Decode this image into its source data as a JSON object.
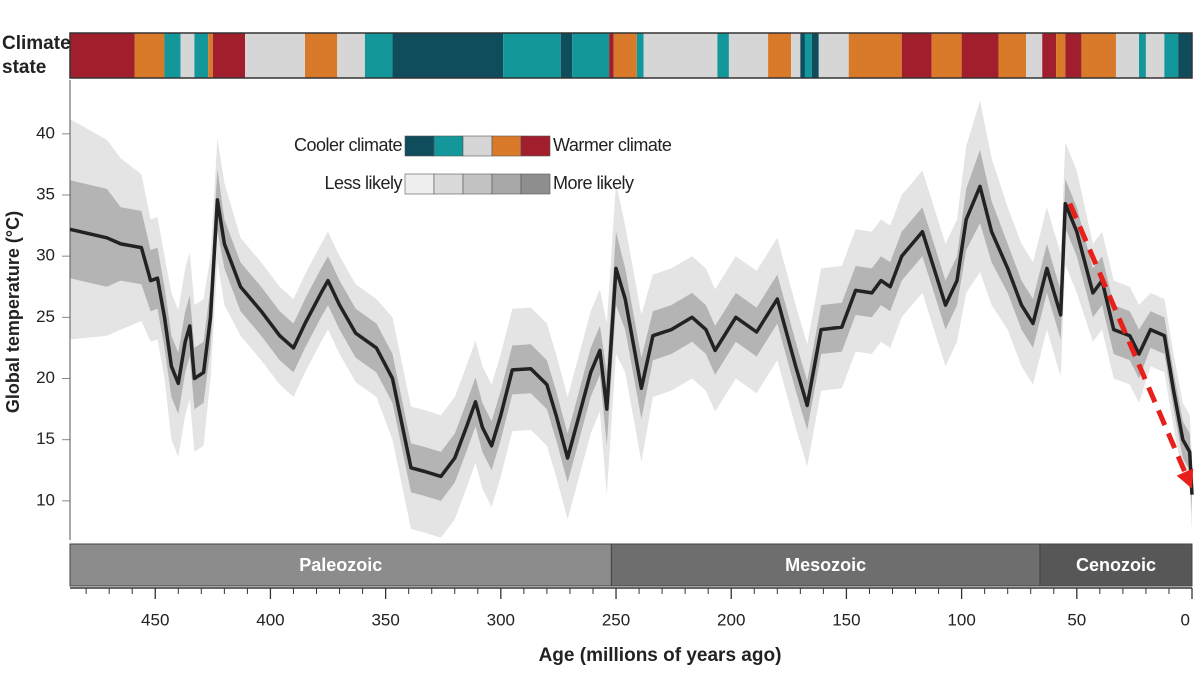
{
  "chart_data": {
    "type": "line",
    "y_label": "Global temperature (°C)",
    "x_label": "Age (millions of years ago)",
    "xlim": [
      487,
      0
    ],
    "ylim": [
      6.8,
      44.4
    ],
    "xticks": [
      450,
      400,
      350,
      300,
      250,
      200,
      150,
      100,
      50,
      0
    ],
    "xminor_ticks": [
      480,
      470,
      460,
      440,
      430,
      420,
      410,
      390,
      380,
      370,
      360,
      340,
      330,
      320,
      310,
      290,
      280,
      270,
      260,
      240,
      230,
      220,
      210,
      190,
      180,
      170,
      160,
      140,
      130,
      120,
      110,
      90,
      80,
      70,
      60,
      40,
      30,
      20,
      10
    ],
    "yticks": [
      10,
      15,
      20,
      25,
      30,
      35,
      40
    ],
    "color": "#222222",
    "x": [
      487,
      471,
      465,
      456,
      452,
      449,
      446,
      443,
      440,
      437,
      435,
      433,
      429,
      426,
      423,
      420,
      413,
      404,
      396,
      390,
      385,
      378,
      375,
      370,
      363,
      354,
      347,
      339,
      333,
      326,
      320,
      315,
      311,
      308,
      304,
      300,
      295,
      287,
      280,
      276,
      271,
      266,
      261,
      257,
      254,
      250,
      246,
      239,
      234,
      226,
      217,
      211,
      207,
      198,
      189,
      180,
      172,
      167,
      161,
      152,
      146,
      139,
      135,
      131,
      126,
      117,
      112,
      107,
      102,
      98,
      92,
      87,
      80,
      74,
      69,
      63,
      57,
      55,
      50,
      43,
      39,
      34,
      27,
      23,
      18,
      12,
      8,
      4,
      1,
      0
    ],
    "values": [
      32.2,
      31.5,
      31,
      30.7,
      28,
      28.2,
      25,
      21,
      19.6,
      23,
      24.3,
      20,
      20.5,
      25,
      34.6,
      31,
      27.5,
      25.5,
      23.5,
      22.5,
      24.5,
      27,
      28,
      26,
      23.7,
      22.5,
      20,
      12.7,
      12.4,
      12,
      13.5,
      16,
      18.1,
      16,
      14.5,
      17,
      20.7,
      20.8,
      19.5,
      17,
      13.5,
      17,
      20.5,
      22.3,
      17.5,
      29,
      26.5,
      19.2,
      23.5,
      24,
      25,
      24,
      22.3,
      25,
      23.8,
      26.5,
      21,
      17.8,
      24,
      24.2,
      27.2,
      27,
      28,
      27.5,
      30,
      32,
      29,
      26,
      28,
      33,
      35.7,
      32,
      29,
      26,
      24.5,
      29,
      25.2,
      34.3,
      32,
      27,
      28,
      24,
      23.5,
      22,
      24,
      23.5,
      19,
      15,
      14,
      10.5
    ],
    "error_bands": [
      {
        "color": "#e4e4e4",
        "errors": [
          9,
          8,
          7,
          6,
          5,
          5,
          5,
          6,
          6,
          6,
          6,
          6,
          6,
          5,
          5,
          5,
          4,
          4,
          4,
          4,
          4,
          4,
          4,
          4,
          4,
          4,
          5,
          5,
          5,
          5,
          5,
          5,
          5,
          5,
          5,
          5,
          5,
          5,
          5,
          5,
          5,
          5,
          5,
          5,
          7,
          7,
          6,
          6,
          5,
          5,
          5,
          5,
          5,
          5,
          5,
          5,
          5,
          5,
          5,
          5,
          5,
          5,
          5,
          5,
          5,
          5,
          5,
          5,
          5,
          6,
          7,
          6,
          5,
          5,
          5,
          5,
          5,
          5,
          5,
          4,
          4,
          4,
          4,
          4,
          3,
          3,
          3,
          3,
          3,
          3
        ]
      },
      {
        "color": "#b4b4b4",
        "errors": [
          4,
          4,
          3,
          3,
          2.5,
          2.5,
          2.5,
          2.5,
          2.5,
          2.5,
          2.5,
          2.5,
          2.5,
          2.5,
          2.5,
          2,
          2,
          2,
          2,
          2,
          2,
          2,
          2,
          2,
          2,
          2,
          2,
          2,
          2,
          2,
          2,
          2,
          2,
          2,
          2,
          2,
          2,
          2,
          2,
          2,
          2,
          2,
          2,
          2,
          3,
          3,
          2.5,
          2.5,
          2,
          2,
          2,
          2,
          2,
          2,
          2,
          2,
          2,
          2,
          2,
          2,
          2,
          2,
          2,
          2,
          2,
          2,
          2,
          2,
          2,
          2.5,
          3,
          2.5,
          2,
          2,
          2,
          2,
          2,
          2,
          2,
          2,
          2,
          2,
          2,
          2,
          1.5,
          1.5,
          1.5,
          1.5,
          1.5,
          1.5
        ]
      }
    ],
    "climate_state": {
      "label": [
        "Climate",
        "state"
      ],
      "boundaries": [
        487,
        459,
        446,
        439,
        433,
        427,
        425,
        411,
        385,
        371,
        359,
        347,
        299,
        274,
        269,
        253,
        251,
        241,
        238,
        206,
        201,
        184,
        174,
        170,
        168,
        165,
        162,
        149,
        126,
        113,
        100,
        84,
        72,
        65,
        59,
        55,
        48,
        33,
        23,
        20,
        12,
        6,
        0
      ],
      "states": [
        4,
        3,
        1,
        2,
        1,
        3,
        4,
        2,
        3,
        2,
        1,
        0,
        1,
        0,
        1,
        4,
        3,
        1,
        2,
        1,
        2,
        3,
        2,
        0,
        1,
        0,
        2,
        3,
        4,
        3,
        4,
        3,
        2,
        4,
        3,
        4,
        3,
        2,
        1,
        2,
        1,
        0
      ]
    },
    "legend": {
      "climate": {
        "left": "Cooler climate",
        "right": "Warmer climate",
        "colors": [
          "#0f4d5c",
          "#13979b",
          "#d6d6d6",
          "#d97a2b",
          "#a11f2d"
        ]
      },
      "likelihood": {
        "left": "Less likely",
        "right": "More likely",
        "colors": [
          "#eeeeee",
          "#dadada",
          "#c2c2c2",
          "#a8a8a8",
          "#8e8e8e"
        ]
      }
    },
    "eras": {
      "names": [
        "Paleozoic",
        "Mesozoic",
        "Cenozoic"
      ],
      "boundaries": [
        487,
        252,
        66,
        0
      ],
      "colors": [
        "#8c8c8c",
        "#6e6e6e",
        "#575757"
      ]
    },
    "arrow": {
      "from": [
        53,
        34.3
      ],
      "to": [
        0,
        11
      ],
      "color": "#e8201c"
    }
  }
}
